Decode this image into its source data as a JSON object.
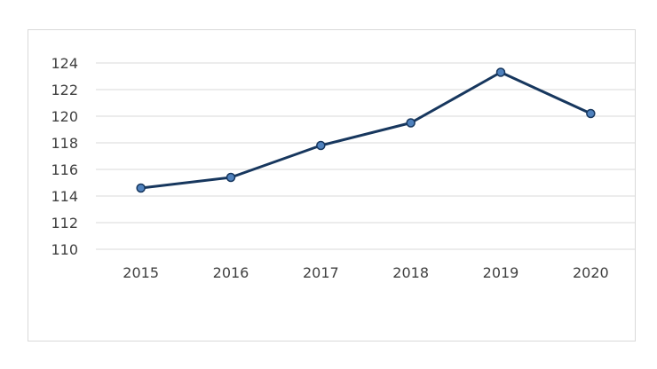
{
  "chart_data": {
    "type": "line",
    "title": "",
    "xlabel": "",
    "ylabel": "",
    "categories": [
      "2015",
      "2016",
      "2017",
      "2018",
      "2019",
      "2020"
    ],
    "series": [
      {
        "values": [
          114.6,
          115.4,
          117.8,
          119.5,
          123.3,
          120.2
        ]
      }
    ],
    "ylim": [
      110,
      124
    ],
    "yticks": [
      "110",
      "112",
      "114",
      "116",
      "118",
      "120",
      "122",
      "124"
    ],
    "grid": true,
    "legend": "none",
    "colors": {
      "line": "#17375e",
      "marker_fill": "#4f81bd",
      "grid": "#d9d9d9"
    }
  }
}
